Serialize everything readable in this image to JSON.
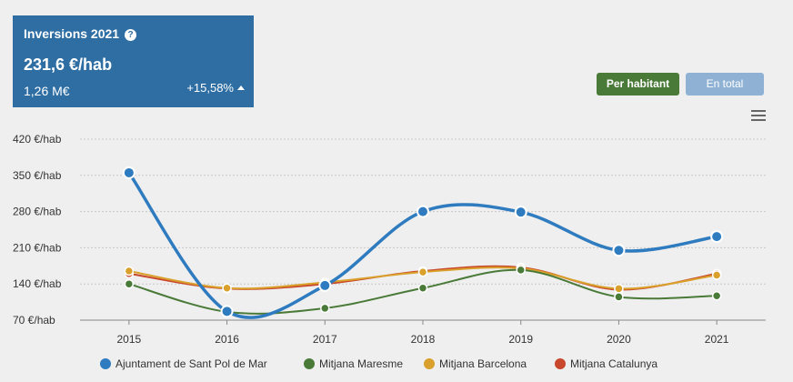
{
  "kpi": {
    "title": "Inversions 2021",
    "value": "231,6 €/hab",
    "total": "1,26 M€",
    "change": "+15,58%"
  },
  "buttons": {
    "per_habitant": "Per habitant",
    "en_total": "En total"
  },
  "colors": {
    "kpi_bg": "#2e6ea3",
    "active_button": "#4a7a38",
    "inactive_button": "#8fb2d4"
  },
  "chart_data": {
    "type": "line",
    "categories": [
      "2015",
      "2016",
      "2017",
      "2018",
      "2019",
      "2020",
      "2021"
    ],
    "ylim": [
      70,
      420
    ],
    "yticks": [
      70,
      140,
      210,
      280,
      350,
      420
    ],
    "ytick_labels": [
      "70 €/hab",
      "140 €/hab",
      "210 €/hab",
      "280 €/hab",
      "350 €/hab",
      "420 €/hab"
    ],
    "grid": true,
    "legend_position": "bottom",
    "series": [
      {
        "name": "Ajuntament de Sant Pol de Mar",
        "color": "#2f7bbf",
        "values": [
          355,
          87,
          137,
          280,
          279,
          205,
          231.6
        ]
      },
      {
        "name": "Mitjana Maresme",
        "color": "#4a7a38",
        "values": [
          140,
          86,
          93,
          132,
          167,
          115,
          117
        ]
      },
      {
        "name": "Mitjana Barcelona",
        "color": "#d9a02b",
        "values": [
          165,
          132,
          143,
          163,
          170,
          131,
          157
        ]
      },
      {
        "name": "Mitjana Catalunya",
        "color": "#c9472a",
        "values": [
          160,
          131,
          140,
          165,
          172,
          129,
          160
        ]
      }
    ]
  }
}
